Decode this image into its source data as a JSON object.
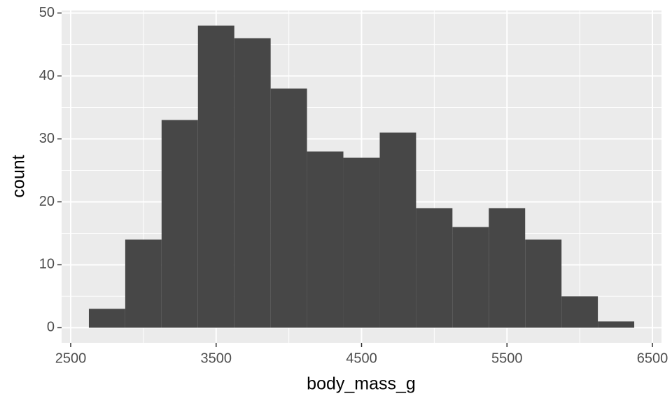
{
  "chart_data": {
    "type": "histogram",
    "bins": [
      2625,
      2875,
      3125,
      3375,
      3625,
      3875,
      4125,
      4375,
      4625,
      4875,
      5125,
      5375,
      5625,
      5875,
      6125,
      6375
    ],
    "values": [
      3,
      14,
      33,
      48,
      46,
      38,
      28,
      27,
      31,
      19,
      16,
      19,
      14,
      5,
      1
    ],
    "color": "#474747",
    "x_label": "body_mass_g",
    "y_label": "count",
    "xlim": [
      2437.5,
      6562.5
    ],
    "xticks": [
      2500,
      3500,
      4500,
      5500,
      6500
    ],
    "ylim": [
      -2.4,
      50.4
    ],
    "yticks": [
      0,
      10,
      20,
      30,
      40,
      50
    ],
    "grid": true
  }
}
